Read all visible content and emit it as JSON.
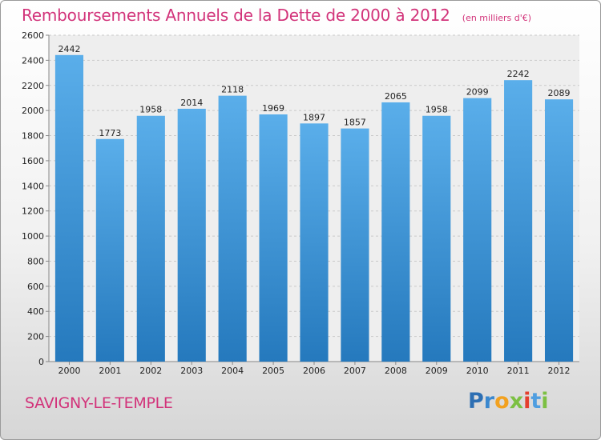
{
  "chart_data": {
    "type": "bar",
    "title": "Remboursements Annuels de la Dette de 2000 à 2012",
    "unit": "(en milliers d'€)",
    "categories": [
      "2000",
      "2001",
      "2002",
      "2003",
      "2004",
      "2005",
      "2006",
      "2007",
      "2008",
      "2009",
      "2010",
      "2011",
      "2012"
    ],
    "values": [
      2442,
      1773,
      1958,
      2014,
      2118,
      1969,
      1897,
      1857,
      2065,
      1958,
      2099,
      2242,
      2089
    ],
    "data_labels": [
      "2442",
      "1773",
      "1958",
      "2014",
      "2118",
      "1969",
      "1897",
      "1857",
      "2065",
      "1958",
      "2099",
      "2242",
      "2089"
    ],
    "y_ticks": [
      "0",
      "200",
      "400",
      "600",
      "800",
      "1000",
      "1200",
      "1400",
      "1600",
      "1800",
      "2000",
      "2200",
      "2400",
      "2600"
    ],
    "ylim": [
      0,
      2600
    ],
    "grid": true,
    "bar_color": "#3e97dc",
    "bar_color_top": "#5aaeea",
    "bar_color_bottom": "#2579bd"
  },
  "footer": {
    "city": "SAVIGNY-LE-TEMPLE",
    "logo": [
      "P",
      "r",
      "o",
      "x",
      "i",
      "t",
      "i"
    ],
    "logo_colors": [
      "#2d6fb3",
      "#3a88cf",
      "#f2a11f",
      "#7cc043",
      "#e43f2e",
      "#4f9ee0",
      "#7cc043"
    ]
  }
}
